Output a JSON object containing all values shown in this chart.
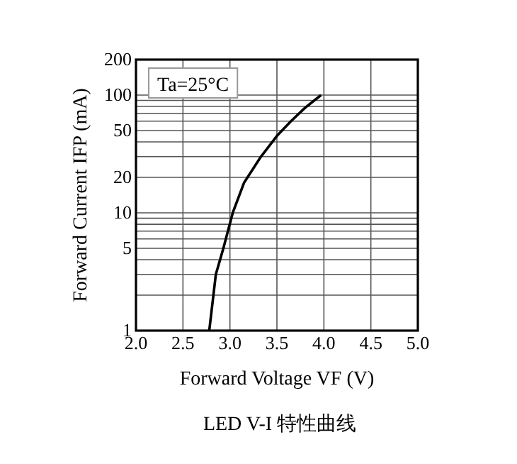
{
  "chart_data": {
    "type": "line",
    "title": "LED V-I 特性曲线",
    "xlabel": "Forward Voltage  VF (V)",
    "ylabel": "Forward Current  IFP (mA)",
    "annotations": [
      "Ta=25°C"
    ],
    "x": [
      2.78,
      2.85,
      2.93,
      3.03,
      3.15,
      3.33,
      3.5,
      3.65,
      3.8,
      3.97
    ],
    "series": [
      {
        "color": "#000000",
        "values": [
          1,
          3,
          5,
          10,
          18,
          30,
          45,
          60,
          78,
          100
        ]
      }
    ],
    "log": "y",
    "xlim": [
      2.0,
      5.0
    ],
    "ylim": [
      1,
      200
    ],
    "xticks": [
      {
        "value": 2.0,
        "label": "2.0"
      },
      {
        "value": 2.5,
        "label": "2.5"
      },
      {
        "value": 3.0,
        "label": "3.0"
      },
      {
        "value": 3.5,
        "label": "3.5"
      },
      {
        "value": 4.0,
        "label": "4.0"
      },
      {
        "value": 4.5,
        "label": "4.5"
      },
      {
        "value": 5.0,
        "label": "5.0"
      }
    ],
    "yticks": [
      1,
      {
        "value": 2,
        "label": null
      },
      {
        "value": 3,
        "label": null
      },
      {
        "value": 4,
        "label": null
      },
      5,
      {
        "value": 6,
        "label": null
      },
      {
        "value": 7,
        "label": null
      },
      {
        "value": 8,
        "label": null
      },
      {
        "value": 9,
        "label": null
      },
      10,
      20,
      {
        "value": 30,
        "label": null
      },
      {
        "value": 40,
        "label": null
      },
      50,
      {
        "value": 60,
        "label": null
      },
      {
        "value": 70,
        "label": null
      },
      {
        "value": 80,
        "label": null
      },
      {
        "value": 90,
        "label": null
      },
      100,
      200
    ],
    "grid": true,
    "marker": "none",
    "line_style": "solid"
  }
}
